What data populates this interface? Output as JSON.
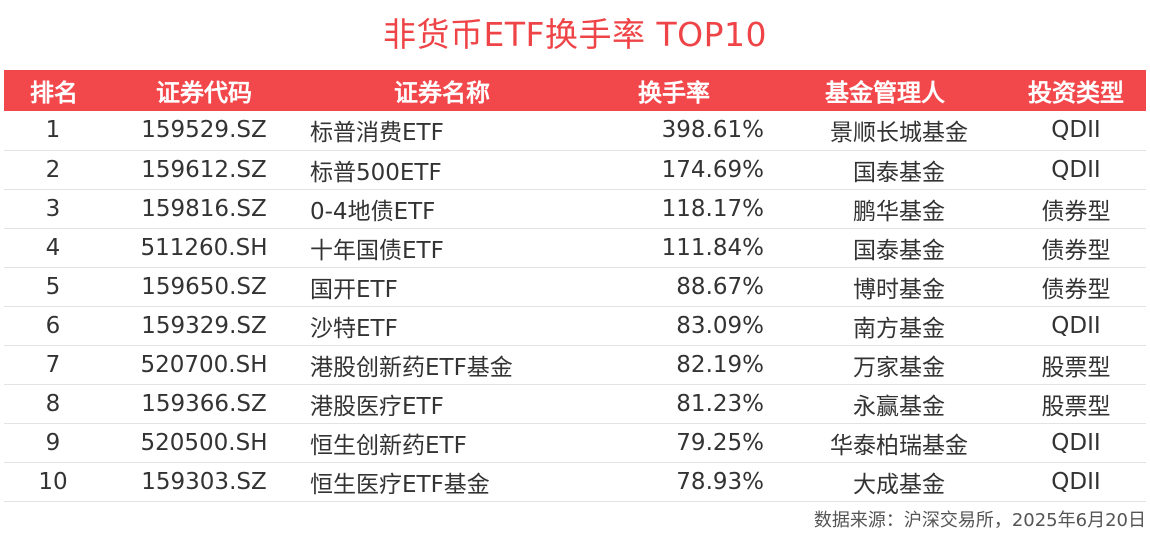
{
  "title": "非货币ETF换手率 TOP10",
  "table": {
    "headers": [
      "排名",
      "证券代码",
      "证券名称",
      "换手率",
      "基金管理人",
      "投资类型"
    ],
    "rows": [
      {
        "rank": "1",
        "code": "159529.SZ",
        "name": "标普消费ETF",
        "rate": "398.61%",
        "manager": "景顺长城基金",
        "type": "QDII"
      },
      {
        "rank": "2",
        "code": "159612.SZ",
        "name": "标普500ETF",
        "rate": "174.69%",
        "manager": "国泰基金",
        "type": "QDII"
      },
      {
        "rank": "3",
        "code": "159816.SZ",
        "name": "0-4地债ETF",
        "rate": "118.17%",
        "manager": "鹏华基金",
        "type": "债券型"
      },
      {
        "rank": "4",
        "code": "511260.SH",
        "name": "十年国债ETF",
        "rate": "111.84%",
        "manager": "国泰基金",
        "type": "债券型"
      },
      {
        "rank": "5",
        "code": "159650.SZ",
        "name": "国开ETF",
        "rate": "88.67%",
        "manager": "博时基金",
        "type": "债券型"
      },
      {
        "rank": "6",
        "code": "159329.SZ",
        "name": "沙特ETF",
        "rate": "83.09%",
        "manager": "南方基金",
        "type": "QDII"
      },
      {
        "rank": "7",
        "code": "520700.SH",
        "name": "港股创新药ETF基金",
        "rate": "82.19%",
        "manager": "万家基金",
        "type": "股票型"
      },
      {
        "rank": "8",
        "code": "159366.SZ",
        "name": "港股医疗ETF",
        "rate": "81.23%",
        "manager": "永赢基金",
        "type": "股票型"
      },
      {
        "rank": "9",
        "code": "520500.SH",
        "name": "恒生创新药ETF",
        "rate": "79.25%",
        "manager": "华泰柏瑞基金",
        "type": "QDII"
      },
      {
        "rank": "10",
        "code": "159303.SZ",
        "name": "恒生医疗ETF基金",
        "rate": "78.93%",
        "manager": "大成基金",
        "type": "QDII"
      }
    ]
  },
  "source": "数据来源：沪深交易所，2025年6月20日",
  "colors": {
    "accent": "#f2474b",
    "title": "#ef4447",
    "text": "#333333"
  }
}
